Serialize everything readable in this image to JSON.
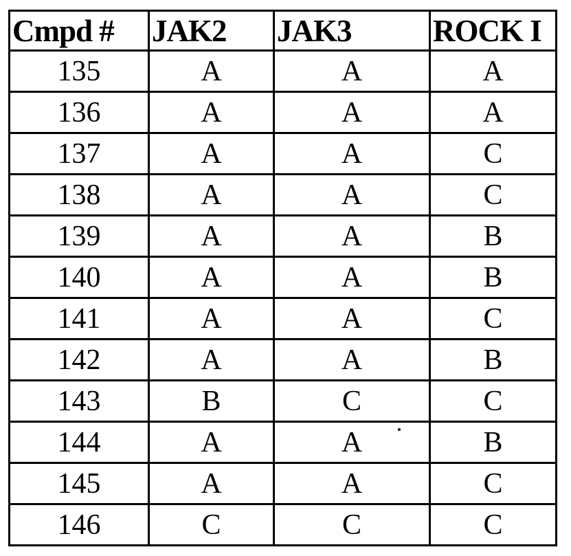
{
  "table": {
    "headers": [
      "Cmpd #",
      "JAK2",
      "JAK3",
      "ROCK I"
    ],
    "rows": [
      [
        "135",
        "A",
        "A",
        "A"
      ],
      [
        "136",
        "A",
        "A",
        "A"
      ],
      [
        "137",
        "A",
        "A",
        "C"
      ],
      [
        "138",
        "A",
        "A",
        "C"
      ],
      [
        "139",
        "A",
        "A",
        "B"
      ],
      [
        "140",
        "A",
        "A",
        "B"
      ],
      [
        "141",
        "A",
        "A",
        "C"
      ],
      [
        "142",
        "A",
        "A",
        "B"
      ],
      [
        "143",
        "B",
        "C",
        "C"
      ],
      [
        "144",
        "A",
        "A",
        "B"
      ],
      [
        "145",
        "A",
        "A",
        "C"
      ],
      [
        "146",
        "C",
        "C",
        "C"
      ]
    ]
  }
}
